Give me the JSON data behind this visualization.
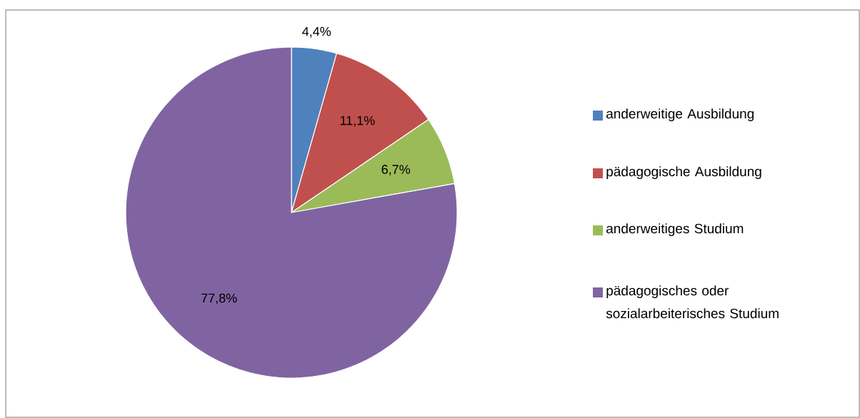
{
  "chart_data": {
    "type": "pie",
    "categories": [
      "anderweitige Ausbildung",
      "pädagogische Ausbildung",
      "anderweitiges Studium",
      "pädagogisches oder sozialarbeiterisches Studium"
    ],
    "values": [
      4.4,
      11.1,
      6.7,
      77.8
    ],
    "colors": [
      "#4f81bd",
      "#c0504d",
      "#9bbb59",
      "#8064a2"
    ],
    "value_labels": [
      "4,4%",
      "11,1%",
      "6,7%",
      "77,8%"
    ],
    "legend": "right"
  }
}
